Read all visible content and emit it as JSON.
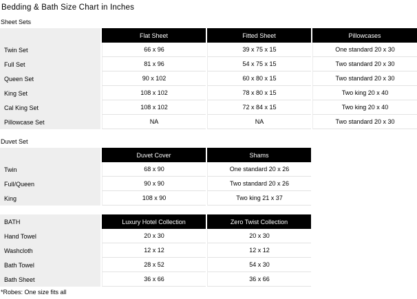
{
  "page": {
    "title": "Bedding & Bath Size Chart in Inches",
    "footnote": "*Robes: One size fits all"
  },
  "colors": {
    "header_bg": "#000000",
    "header_text": "#ffffff",
    "label_column_bg": "#eeeeee",
    "grid_line": "#e2e2e2",
    "background": "#ffffff"
  },
  "tables": {
    "sheet_sets": {
      "section_label": "Sheet Sets",
      "columns": [
        "Flat Sheet",
        "Fitted Sheet",
        "Pillowcases"
      ],
      "rows": [
        {
          "label": "Twin Set",
          "values": [
            "66 x 96",
            "39 x 75 x 15",
            "One standard 20 x 30"
          ]
        },
        {
          "label": "Full Set",
          "values": [
            "81 x 96",
            "54 x 75 x 15",
            "Two standard 20 x 30"
          ]
        },
        {
          "label": "Queen Set",
          "values": [
            "90 x 102",
            "60 x 80 x 15",
            "Two standard 20 x 30"
          ]
        },
        {
          "label": "King Set",
          "values": [
            "108 x 102",
            "78 x 80 x 15",
            "Two king 20 x 40"
          ]
        },
        {
          "label": "Cal King Set",
          "values": [
            "108 x 102",
            "72 x 84 x 15",
            "Two king 20 x 40"
          ]
        },
        {
          "label": "Pillowcase Set",
          "values": [
            "NA",
            "NA",
            "Two standard 20 x 30"
          ]
        }
      ]
    },
    "duvet_set": {
      "section_label": "Duvet Set",
      "columns": [
        "Duvet Cover",
        "Shams"
      ],
      "rows": [
        {
          "label": "Twin",
          "values": [
            "68 x 90",
            "One standard 20 x 26"
          ]
        },
        {
          "label": "Full/Queen",
          "values": [
            "90 x 90",
            "Two standard 20 x 26"
          ]
        },
        {
          "label": "King",
          "values": [
            "108 x 90",
            "Two king 21 x 37"
          ]
        }
      ]
    },
    "bath": {
      "corner_label": "BATH",
      "columns": [
        "Luxury Hotel Collection",
        "Zero Twist Collection"
      ],
      "rows": [
        {
          "label": "Hand Towel",
          "values": [
            "20 x 30",
            "20 x 30"
          ]
        },
        {
          "label": "Washcloth",
          "values": [
            "12 x 12",
            "12 x 12"
          ]
        },
        {
          "label": "Bath Towel",
          "values": [
            "28 x 52",
            "54 x 30"
          ]
        },
        {
          "label": "Bath Sheet",
          "values": [
            "36 x 66",
            "36 x 66"
          ]
        }
      ]
    }
  }
}
